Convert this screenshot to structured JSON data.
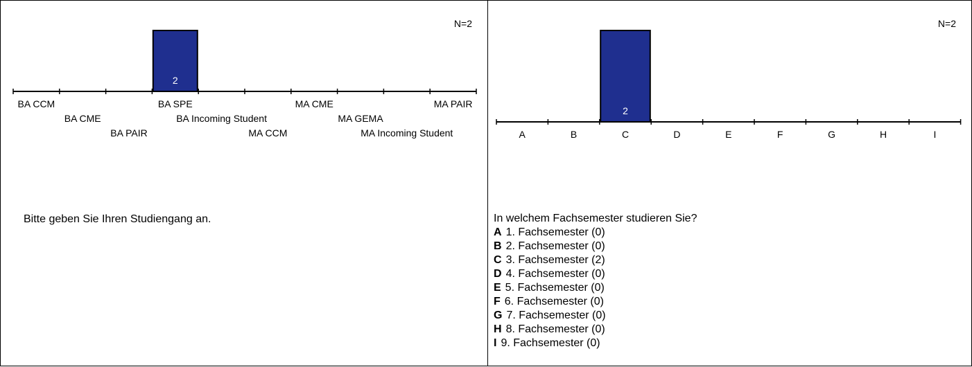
{
  "chart_data": [
    {
      "type": "bar",
      "n_label": "N=2",
      "question": "Bitte geben Sie Ihren Studiengang an.",
      "categories": [
        "BA CCM",
        "BA CME",
        "BA PAIR",
        "BA SPE",
        "BA Incoming Student",
        "MA CCM",
        "MA CME",
        "MA GEMA",
        "MA Incoming Student",
        "MA PAIR"
      ],
      "values": [
        0,
        0,
        0,
        2,
        0,
        0,
        0,
        0,
        0,
        0
      ],
      "data_labels": [
        "",
        "",
        "",
        "2",
        "",
        "",
        "",
        "",
        "",
        ""
      ],
      "ylim": [
        0,
        2
      ],
      "color": "#1f2f8f"
    },
    {
      "type": "bar",
      "n_label": "N=2",
      "question": "In welchem Fachsemester studieren Sie?",
      "categories": [
        "A",
        "B",
        "C",
        "D",
        "E",
        "F",
        "G",
        "H",
        "I"
      ],
      "values": [
        0,
        0,
        2,
        0,
        0,
        0,
        0,
        0,
        0
      ],
      "data_labels": [
        "",
        "",
        "2",
        "",
        "",
        "",
        "",
        "",
        ""
      ],
      "ylim": [
        0,
        2
      ],
      "color": "#1f2f8f",
      "options": [
        {
          "key": "A",
          "text": "1. Fachsemester (0)"
        },
        {
          "key": "B",
          "text": "2. Fachsemester (0)"
        },
        {
          "key": "C",
          "text": "3. Fachsemester (2)"
        },
        {
          "key": "D",
          "text": "4. Fachsemester (0)"
        },
        {
          "key": "E",
          "text": "5. Fachsemester (0)"
        },
        {
          "key": "F",
          "text": "6. Fachsemester (0)"
        },
        {
          "key": "G",
          "text": "7. Fachsemester (0)"
        },
        {
          "key": "H",
          "text": "8. Fachsemester (0)"
        },
        {
          "key": "I",
          "text": "9. Fachsemester (0)"
        }
      ]
    }
  ]
}
